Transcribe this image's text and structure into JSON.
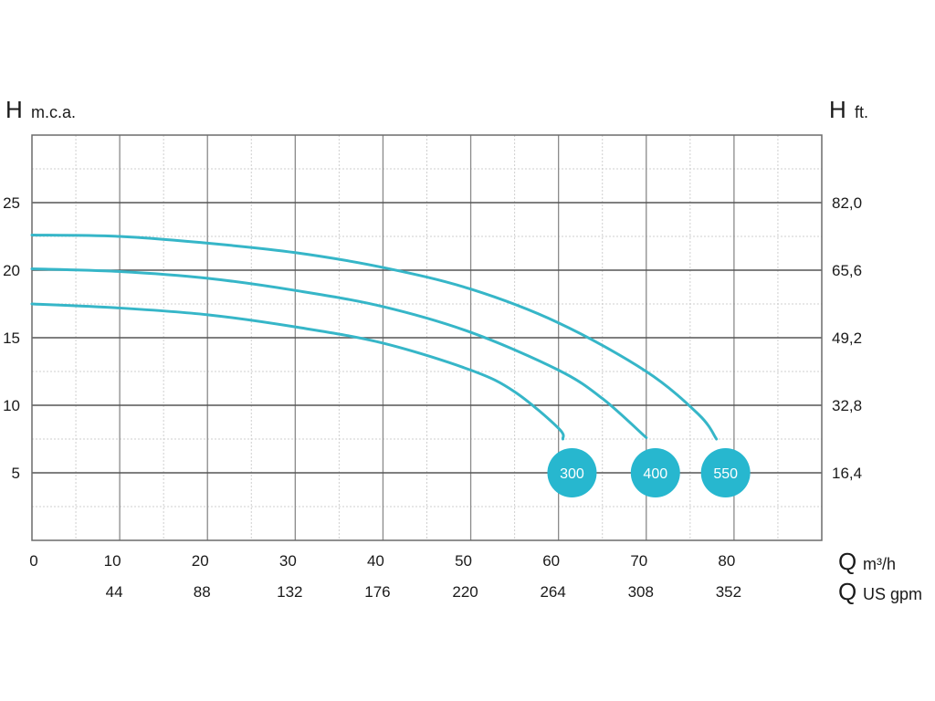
{
  "chart_data": {
    "type": "line",
    "x_primary": {
      "symbol": "Q",
      "unit": "m³/h",
      "ticks": [
        0,
        10,
        20,
        30,
        40,
        50,
        60,
        70,
        80
      ],
      "range": [
        0,
        90
      ]
    },
    "x_secondary": {
      "symbol": "Q",
      "unit": "US gpm",
      "ticks": [
        "44",
        "88",
        "132",
        "176",
        "220",
        "264",
        "308",
        "352"
      ]
    },
    "y_left": {
      "symbol": "H",
      "unit": "m.c.a.",
      "ticks": [
        5,
        10,
        15,
        20,
        25
      ],
      "range": [
        0,
        30
      ]
    },
    "y_right": {
      "symbol": "H",
      "unit": "ft.",
      "ticks": [
        "16,4",
        "32,8",
        "49,2",
        "65,6",
        "82,0"
      ]
    },
    "grid": true,
    "series": [
      {
        "name": "300",
        "color": "#36b6c8",
        "badge_color": "#27b7cf",
        "points": [
          [
            0,
            17.5
          ],
          [
            10,
            17.2
          ],
          [
            20,
            16.7
          ],
          [
            30,
            15.8
          ],
          [
            40,
            14.6
          ],
          [
            50,
            12.6
          ],
          [
            55,
            11.0
          ],
          [
            60,
            8.3
          ],
          [
            60.5,
            7.5
          ]
        ]
      },
      {
        "name": "400",
        "color": "#36b6c8",
        "badge_color": "#27b7cf",
        "points": [
          [
            0,
            20.1
          ],
          [
            10,
            19.9
          ],
          [
            20,
            19.4
          ],
          [
            30,
            18.5
          ],
          [
            40,
            17.3
          ],
          [
            50,
            15.4
          ],
          [
            60,
            12.6
          ],
          [
            65,
            10.5
          ],
          [
            70,
            7.6
          ]
        ]
      },
      {
        "name": "550",
        "color": "#36b6c8",
        "badge_color": "#27b7cf",
        "points": [
          [
            0,
            22.6
          ],
          [
            10,
            22.5
          ],
          [
            20,
            22.0
          ],
          [
            30,
            21.3
          ],
          [
            40,
            20.2
          ],
          [
            50,
            18.6
          ],
          [
            60,
            16.1
          ],
          [
            70,
            12.5
          ],
          [
            76,
            9.3
          ],
          [
            78,
            7.5
          ]
        ]
      }
    ]
  }
}
